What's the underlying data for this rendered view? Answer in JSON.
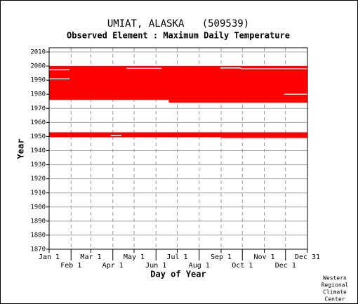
{
  "chart_data": {
    "type": "range-bands",
    "title": "UMIAT, ALASKA   (509539)",
    "subtitle": "Observed Element : Maximum Daily Temperature",
    "xlabel": "Day of Year",
    "ylabel": "Year",
    "footer": [
      "Western",
      "Regional",
      "Climate",
      "Center"
    ],
    "color": "#ff0000",
    "gap_color": "#ffffff",
    "grid": true,
    "xlim": [
      1,
      366
    ],
    "ylim": [
      1870,
      2013
    ],
    "xticks": [
      {
        "value": 1,
        "label": "Jan 1"
      },
      {
        "value": 32,
        "label": "Feb 1"
      },
      {
        "value": 60,
        "label": "Mar 1"
      },
      {
        "value": 91,
        "label": "Apr 1"
      },
      {
        "value": 121,
        "label": "May 1"
      },
      {
        "value": 152,
        "label": "Jun 1"
      },
      {
        "value": 182,
        "label": "Jul 1"
      },
      {
        "value": 213,
        "label": "Aug 1"
      },
      {
        "value": 244,
        "label": "Sep 1"
      },
      {
        "value": 274,
        "label": "Oct 1"
      },
      {
        "value": 305,
        "label": "Nov 1"
      },
      {
        "value": 335,
        "label": "Dec 1"
      },
      {
        "value": 366,
        "label": "Dec 31"
      }
    ],
    "yticks": [
      1870,
      1880,
      1890,
      1900,
      1910,
      1920,
      1930,
      1940,
      1950,
      1960,
      1970,
      1980,
      1990,
      2000,
      2010
    ],
    "bands": [
      {
        "x": [
          1,
          366
        ],
        "y": [
          1976,
          2000
        ]
      },
      {
        "x": [
          170,
          366
        ],
        "y": [
          1974,
          1976
        ]
      },
      {
        "x": [
          1,
          244
        ],
        "y": [
          1949.5,
          1953
        ]
      },
      {
        "x": [
          244,
          366
        ],
        "y": [
          1949,
          1953
        ]
      }
    ],
    "gaps": [
      {
        "x": [
          1,
          30
        ],
        "y": [
          1997,
          1997.7
        ]
      },
      {
        "x": [
          1,
          30
        ],
        "y": [
          1990.6,
          1991.3
        ]
      },
      {
        "x": [
          110,
          160
        ],
        "y": [
          1998,
          1998.7
        ]
      },
      {
        "x": [
          243,
          272
        ],
        "y": [
          1998.3,
          1999
        ]
      },
      {
        "x": [
          272,
          366
        ],
        "y": [
          1997.8,
          1998.5
        ]
      },
      {
        "x": [
          333,
          366
        ],
        "y": [
          1979.7,
          1980.4
        ]
      },
      {
        "x": [
          88,
          103
        ],
        "y": [
          1950.5,
          1951.2
        ]
      }
    ]
  }
}
